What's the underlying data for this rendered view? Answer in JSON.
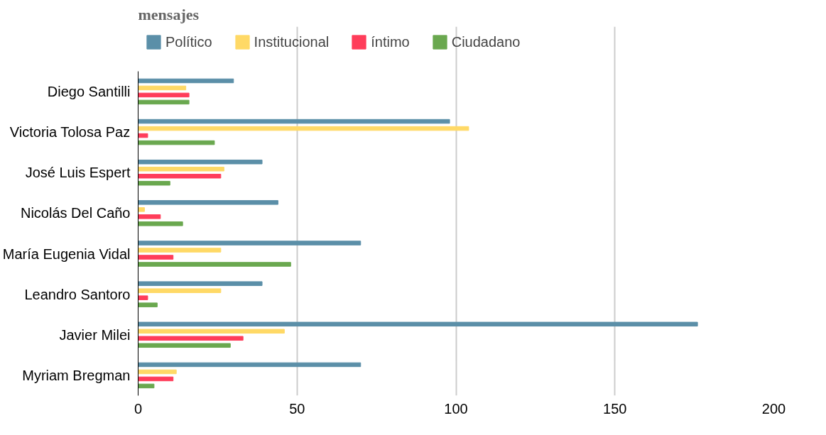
{
  "chart_data": {
    "type": "bar",
    "orientation": "horizontal",
    "title": "mensajes",
    "categories": [
      "Diego Santilli",
      "Victoria Tolosa Paz",
      "José Luis Espert",
      "Nicolás Del Caño",
      "María Eugenia Vidal",
      "Leandro Santoro",
      "Javier Milei",
      "Myriam Bregman"
    ],
    "series": [
      {
        "name": "Político",
        "color": "#5b8fa8",
        "values": [
          30,
          98,
          39,
          44,
          70,
          39,
          176,
          70
        ]
      },
      {
        "name": "Institucional",
        "color": "#ffd966",
        "values": [
          15,
          104,
          27,
          2,
          26,
          26,
          46,
          12
        ]
      },
      {
        "name": "íntimo",
        "color": "#ff3d5a",
        "values": [
          16,
          3,
          26,
          7,
          11,
          3,
          33,
          11
        ]
      },
      {
        "name": "Ciudadano",
        "color": "#6aa84f",
        "values": [
          16,
          24,
          10,
          14,
          48,
          6,
          29,
          5
        ]
      }
    ],
    "xlim": [
      0,
      200
    ],
    "xticks": [
      0,
      50,
      100,
      150,
      200
    ],
    "grid": "x",
    "legend": "top"
  }
}
